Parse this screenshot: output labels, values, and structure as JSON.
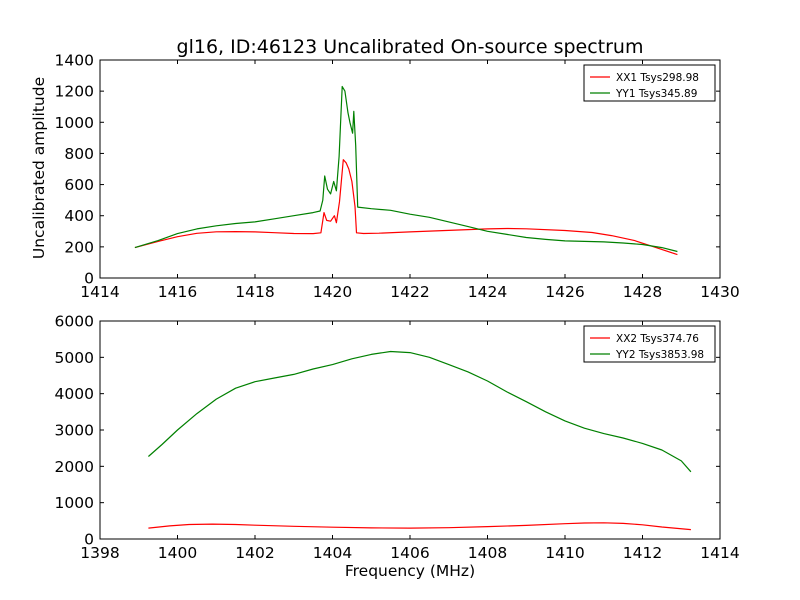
{
  "figure": {
    "title": "gl16, ID:46123 Uncalibrated On-source spectrum",
    "ylabel": "Uncalibrated amplitude",
    "xlabel": "Frequency (MHz)"
  },
  "chart_data": [
    {
      "type": "line",
      "title": "gl16, ID:46123 Uncalibrated On-source spectrum",
      "xlabel": "",
      "ylabel": "Uncalibrated amplitude",
      "xlim": [
        1414,
        1430
      ],
      "ylim": [
        0,
        1400
      ],
      "xticks": [
        1414,
        1416,
        1418,
        1420,
        1422,
        1424,
        1426,
        1428,
        1430
      ],
      "yticks": [
        0,
        200,
        400,
        600,
        800,
        1000,
        1200,
        1400
      ],
      "grid": false,
      "legend_position": "top-right",
      "series": [
        {
          "name": "XX1 Tsys298.98",
          "color": "#ff0000",
          "points": [
            [
              1414.9,
              195
            ],
            [
              1415.5,
              235
            ],
            [
              1416.0,
              265
            ],
            [
              1416.5,
              287
            ],
            [
              1417.0,
              297
            ],
            [
              1417.5,
              298
            ],
            [
              1418.0,
              296
            ],
            [
              1418.5,
              291
            ],
            [
              1419.0,
              286
            ],
            [
              1419.5,
              285
            ],
            [
              1419.7,
              290
            ],
            [
              1419.78,
              420
            ],
            [
              1419.85,
              370
            ],
            [
              1419.95,
              365
            ],
            [
              1420.05,
              400
            ],
            [
              1420.1,
              355
            ],
            [
              1420.18,
              490
            ],
            [
              1420.28,
              760
            ],
            [
              1420.35,
              740
            ],
            [
              1420.42,
              700
            ],
            [
              1420.5,
              620
            ],
            [
              1420.58,
              460
            ],
            [
              1420.62,
              290
            ],
            [
              1420.8,
              286
            ],
            [
              1421.2,
              288
            ],
            [
              1422.0,
              296
            ],
            [
              1423.0,
              306
            ],
            [
              1424.0,
              315
            ],
            [
              1424.5,
              318
            ],
            [
              1425.0,
              316
            ],
            [
              1426.0,
              305
            ],
            [
              1426.7,
              292
            ],
            [
              1427.2,
              272
            ],
            [
              1427.8,
              240
            ],
            [
              1428.3,
              200
            ],
            [
              1428.9,
              150
            ]
          ]
        },
        {
          "name": "YY1 Tsys345.89",
          "color": "#008000",
          "points": [
            [
              1414.9,
              195
            ],
            [
              1415.5,
              240
            ],
            [
              1416.0,
              285
            ],
            [
              1416.5,
              315
            ],
            [
              1417.0,
              335
            ],
            [
              1417.5,
              350
            ],
            [
              1418.0,
              360
            ],
            [
              1418.5,
              380
            ],
            [
              1419.0,
              400
            ],
            [
              1419.5,
              420
            ],
            [
              1419.68,
              430
            ],
            [
              1419.75,
              500
            ],
            [
              1419.8,
              655
            ],
            [
              1419.87,
              570
            ],
            [
              1419.95,
              540
            ],
            [
              1420.03,
              620
            ],
            [
              1420.1,
              560
            ],
            [
              1420.17,
              780
            ],
            [
              1420.25,
              1230
            ],
            [
              1420.32,
              1200
            ],
            [
              1420.4,
              1060
            ],
            [
              1420.45,
              1000
            ],
            [
              1420.52,
              930
            ],
            [
              1420.55,
              1070
            ],
            [
              1420.6,
              850
            ],
            [
              1420.65,
              455
            ],
            [
              1421.0,
              445
            ],
            [
              1421.5,
              435
            ],
            [
              1422.0,
              410
            ],
            [
              1422.5,
              390
            ],
            [
              1423.0,
              360
            ],
            [
              1423.5,
              330
            ],
            [
              1424.0,
              300
            ],
            [
              1424.5,
              280
            ],
            [
              1425.0,
              260
            ],
            [
              1425.5,
              248
            ],
            [
              1426.0,
              238
            ],
            [
              1427.0,
              232
            ],
            [
              1427.5,
              225
            ],
            [
              1428.0,
              215
            ],
            [
              1428.5,
              195
            ],
            [
              1428.9,
              170
            ]
          ]
        }
      ]
    },
    {
      "type": "line",
      "title": "",
      "xlabel": "Frequency (MHz)",
      "ylabel": "",
      "xlim": [
        1398,
        1414
      ],
      "ylim": [
        0,
        6000
      ],
      "xticks": [
        1398,
        1400,
        1402,
        1404,
        1406,
        1408,
        1410,
        1412,
        1414
      ],
      "yticks": [
        0,
        1000,
        2000,
        3000,
        4000,
        5000,
        6000
      ],
      "grid": false,
      "legend_position": "top-right",
      "series": [
        {
          "name": "XX2 Tsys374.76",
          "color": "#ff0000",
          "points": [
            [
              1399.25,
              300
            ],
            [
              1399.8,
              360
            ],
            [
              1400.3,
              400
            ],
            [
              1400.9,
              410
            ],
            [
              1401.5,
              400
            ],
            [
              1402.0,
              380
            ],
            [
              1403.0,
              350
            ],
            [
              1404.0,
              325
            ],
            [
              1405.0,
              305
            ],
            [
              1406.0,
              300
            ],
            [
              1407.0,
              310
            ],
            [
              1408.0,
              340
            ],
            [
              1409.0,
              375
            ],
            [
              1410.0,
              420
            ],
            [
              1410.5,
              440
            ],
            [
              1411.0,
              445
            ],
            [
              1411.5,
              430
            ],
            [
              1412.0,
              390
            ],
            [
              1412.5,
              330
            ],
            [
              1413.25,
              260
            ]
          ]
        },
        {
          "name": "YY2 Tsys3853.98",
          "color": "#008000",
          "points": [
            [
              1399.25,
              2270
            ],
            [
              1399.6,
              2600
            ],
            [
              1400.0,
              3000
            ],
            [
              1400.5,
              3450
            ],
            [
              1401.0,
              3850
            ],
            [
              1401.5,
              4150
            ],
            [
              1402.0,
              4330
            ],
            [
              1402.5,
              4430
            ],
            [
              1403.0,
              4530
            ],
            [
              1403.5,
              4680
            ],
            [
              1404.0,
              4800
            ],
            [
              1404.5,
              4960
            ],
            [
              1405.0,
              5080
            ],
            [
              1405.5,
              5160
            ],
            [
              1406.0,
              5130
            ],
            [
              1406.5,
              5000
            ],
            [
              1407.0,
              4800
            ],
            [
              1407.5,
              4600
            ],
            [
              1408.0,
              4350
            ],
            [
              1408.5,
              4050
            ],
            [
              1409.0,
              3780
            ],
            [
              1409.5,
              3500
            ],
            [
              1410.0,
              3250
            ],
            [
              1410.5,
              3050
            ],
            [
              1411.0,
              2900
            ],
            [
              1411.5,
              2780
            ],
            [
              1412.0,
              2630
            ],
            [
              1412.5,
              2450
            ],
            [
              1413.0,
              2150
            ],
            [
              1413.25,
              1850
            ]
          ]
        }
      ]
    }
  ]
}
